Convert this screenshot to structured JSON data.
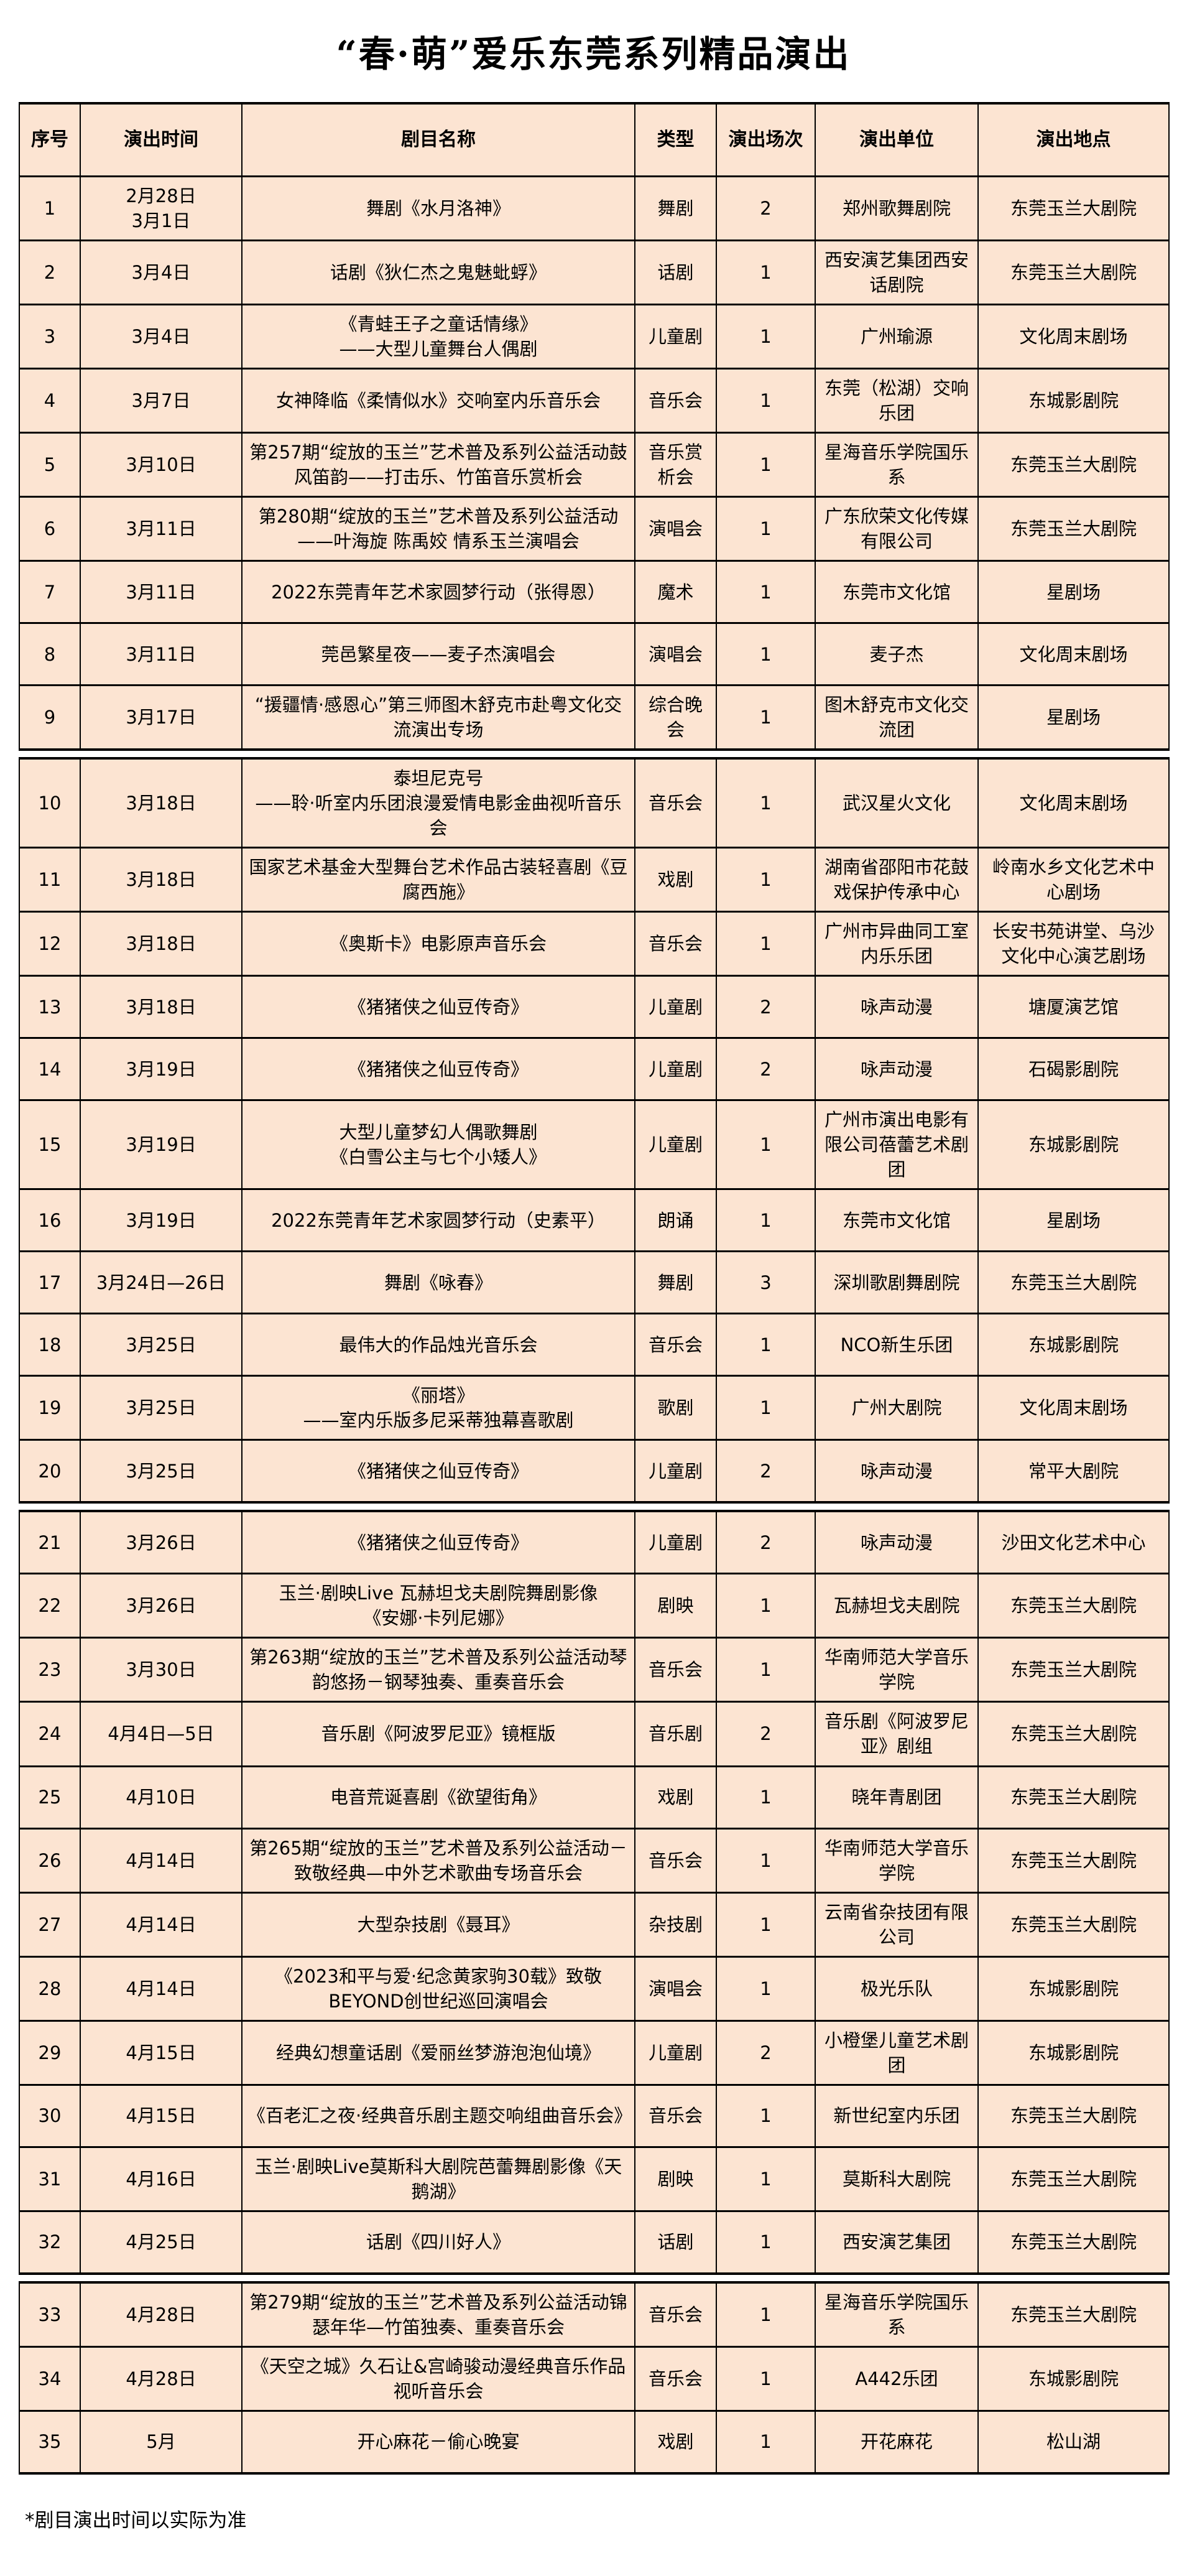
{
  "page_title": "“春·萌”爱乐东莞系列精品演出",
  "footnote": "*剧目演出时间以实际为准",
  "colors": {
    "page_bg": "#ffffff",
    "cell_bg": "#fce4d2",
    "border": "#000000",
    "text": "#000000"
  },
  "table": {
    "columns": [
      "序号",
      "演出时间",
      "剧目名称",
      "类型",
      "演出场次",
      "演出单位",
      "演出地点"
    ],
    "section_row_counts": [
      9,
      11,
      12,
      3
    ],
    "rows": [
      {
        "no": "1",
        "date": "2月28日\n3月1日",
        "title": "舞剧《水月洛神》",
        "type": "舞剧",
        "shows": "2",
        "org": "郑州歌舞剧院",
        "venue": "东莞玉兰大剧院"
      },
      {
        "no": "2",
        "date": "3月4日",
        "title": "话剧《狄仁杰之鬼魅蚍蜉》",
        "type": "话剧",
        "shows": "1",
        "org": "西安演艺集团西安话剧院",
        "venue": "东莞玉兰大剧院"
      },
      {
        "no": "3",
        "date": "3月4日",
        "title": "《青蛙王子之童话情缘》\n——大型儿童舞台人偶剧",
        "type": "儿童剧",
        "shows": "1",
        "org": "广州瑜源",
        "venue": "文化周末剧场"
      },
      {
        "no": "4",
        "date": "3月7日",
        "title": "女神降临《柔情似水》交响室内乐音乐会",
        "type": "音乐会",
        "shows": "1",
        "org": "东莞（松湖）交响乐团",
        "venue": "东城影剧院"
      },
      {
        "no": "5",
        "date": "3月10日",
        "title": "第257期“绽放的玉兰”艺术普及系列公益活动鼓风笛韵——打击乐、竹笛音乐赏析会",
        "type": "音乐赏析会",
        "shows": "1",
        "org": "星海音乐学院国乐系",
        "venue": "东莞玉兰大剧院"
      },
      {
        "no": "6",
        "date": "3月11日",
        "title": "第280期“绽放的玉兰”艺术普及系列公益活动——叶海旋 陈禹姣 情系玉兰演唱会",
        "type": "演唱会",
        "shows": "1",
        "org": "广东欣荣文化传媒有限公司",
        "venue": "东莞玉兰大剧院"
      },
      {
        "no": "7",
        "date": "3月11日",
        "title": "2022东莞青年艺术家圆梦行动（张得恩）",
        "type": "魔术",
        "shows": "1",
        "org": "东莞市文化馆",
        "venue": "星剧场"
      },
      {
        "no": "8",
        "date": "3月11日",
        "title": "莞邑繁星夜——麦子杰演唱会",
        "type": "演唱会",
        "shows": "1",
        "org": "麦子杰",
        "venue": "文化周末剧场"
      },
      {
        "no": "9",
        "date": "3月17日",
        "title": "“援疆情·感恩心”第三师图木舒克市赴粤文化交流演出专场",
        "type": "综合晚会",
        "shows": "1",
        "org": "图木舒克市文化交流团",
        "venue": "星剧场"
      },
      {
        "no": "10",
        "date": "3月18日",
        "title": "泰坦尼克号\n——聆·听室内乐团浪漫爱情电影金曲视听音乐会",
        "type": "音乐会",
        "shows": "1",
        "org": "武汉星火文化",
        "venue": "文化周末剧场"
      },
      {
        "no": "11",
        "date": "3月18日",
        "title": "国家艺术基金大型舞台艺术作品古装轻喜剧《豆腐西施》",
        "type": "戏剧",
        "shows": "1",
        "org": "湖南省邵阳市花鼓戏保护传承中心",
        "venue": "岭南水乡文化艺术中心剧场"
      },
      {
        "no": "12",
        "date": "3月18日",
        "title": "《奥斯卡》电影原声音乐会",
        "type": "音乐会",
        "shows": "1",
        "org": "广州市异曲同工室内乐乐团",
        "venue": "长安书苑讲堂、乌沙文化中心演艺剧场"
      },
      {
        "no": "13",
        "date": "3月18日",
        "title": "《猪猪侠之仙豆传奇》",
        "type": "儿童剧",
        "shows": "2",
        "org": "咏声动漫",
        "venue": "塘厦演艺馆"
      },
      {
        "no": "14",
        "date": "3月19日",
        "title": "《猪猪侠之仙豆传奇》",
        "type": "儿童剧",
        "shows": "2",
        "org": "咏声动漫",
        "venue": "石碣影剧院"
      },
      {
        "no": "15",
        "date": "3月19日",
        "title": "大型儿童梦幻人偶歌舞剧\n《白雪公主与七个小矮人》",
        "type": "儿童剧",
        "shows": "1",
        "org": "广州市演出电影有限公司蓓蕾艺术剧团",
        "venue": "东城影剧院"
      },
      {
        "no": "16",
        "date": "3月19日",
        "title": "2022东莞青年艺术家圆梦行动（史素平）",
        "type": "朗诵",
        "shows": "1",
        "org": "东莞市文化馆",
        "venue": "星剧场"
      },
      {
        "no": "17",
        "date": "3月24日—26日",
        "title": "舞剧《咏春》",
        "type": "舞剧",
        "shows": "3",
        "org": "深圳歌剧舞剧院",
        "venue": "东莞玉兰大剧院"
      },
      {
        "no": "18",
        "date": "3月25日",
        "title": "最伟大的作品烛光音乐会",
        "type": "音乐会",
        "shows": "1",
        "org": "NCO新生乐团",
        "venue": "东城影剧院"
      },
      {
        "no": "19",
        "date": "3月25日",
        "title": "《丽塔》\n——室内乐版多尼采蒂独幕喜歌剧",
        "type": "歌剧",
        "shows": "1",
        "org": "广州大剧院",
        "venue": "文化周末剧场"
      },
      {
        "no": "20",
        "date": "3月25日",
        "title": "《猪猪侠之仙豆传奇》",
        "type": "儿童剧",
        "shows": "2",
        "org": "咏声动漫",
        "venue": "常平大剧院"
      },
      {
        "no": "21",
        "date": "3月26日",
        "title": "《猪猪侠之仙豆传奇》",
        "type": "儿童剧",
        "shows": "2",
        "org": "咏声动漫",
        "venue": "沙田文化艺术中心"
      },
      {
        "no": "22",
        "date": "3月26日",
        "title": "玉兰·剧映Live 瓦赫坦戈夫剧院舞剧影像\n《安娜·卡列尼娜》",
        "type": "剧映",
        "shows": "1",
        "org": "瓦赫坦戈夫剧院",
        "venue": "东莞玉兰大剧院"
      },
      {
        "no": "23",
        "date": "3月30日",
        "title": "第263期“绽放的玉兰”艺术普及系列公益活动琴韵悠扬－钢琴独奏、重奏音乐会",
        "type": "音乐会",
        "shows": "1",
        "org": "华南师范大学音乐学院",
        "venue": "东莞玉兰大剧院"
      },
      {
        "no": "24",
        "date": "4月4日—5日",
        "title": "音乐剧《阿波罗尼亚》镜框版",
        "type": "音乐剧",
        "shows": "2",
        "org": "音乐剧《阿波罗尼亚》剧组",
        "venue": "东莞玉兰大剧院"
      },
      {
        "no": "25",
        "date": "4月10日",
        "title": "电音荒诞喜剧《欲望街角》",
        "type": "戏剧",
        "shows": "1",
        "org": "晓年青剧团",
        "venue": "东莞玉兰大剧院"
      },
      {
        "no": "26",
        "date": "4月14日",
        "title": "第265期“绽放的玉兰”艺术普及系列公益活动－致敬经典—中外艺术歌曲专场音乐会",
        "type": "音乐会",
        "shows": "1",
        "org": "华南师范大学音乐学院",
        "venue": "东莞玉兰大剧院"
      },
      {
        "no": "27",
        "date": "4月14日",
        "title": "大型杂技剧《聂耳》",
        "type": "杂技剧",
        "shows": "1",
        "org": "云南省杂技团有限公司",
        "venue": "东莞玉兰大剧院"
      },
      {
        "no": "28",
        "date": "4月14日",
        "title": "《2023和平与爱·纪念黄家驹30载》致敬BEYOND创世纪巡回演唱会",
        "type": "演唱会",
        "shows": "1",
        "org": "极光乐队",
        "venue": "东城影剧院"
      },
      {
        "no": "29",
        "date": "4月15日",
        "title": "经典幻想童话剧《爱丽丝梦游泡泡仙境》",
        "type": "儿童剧",
        "shows": "2",
        "org": "小橙堡儿童艺术剧团",
        "venue": "东城影剧院"
      },
      {
        "no": "30",
        "date": "4月15日",
        "title": "《百老汇之夜·经典音乐剧主题交响组曲音乐会》",
        "type": "音乐会",
        "shows": "1",
        "org": "新世纪室内乐团",
        "venue": "东莞玉兰大剧院"
      },
      {
        "no": "31",
        "date": "4月16日",
        "title": "玉兰·剧映Live莫斯科大剧院芭蕾舞剧影像《天鹅湖》",
        "type": "剧映",
        "shows": "1",
        "org": "莫斯科大剧院",
        "venue": "东莞玉兰大剧院"
      },
      {
        "no": "32",
        "date": "4月25日",
        "title": "话剧《四川好人》",
        "type": "话剧",
        "shows": "1",
        "org": "西安演艺集团",
        "venue": "东莞玉兰大剧院"
      },
      {
        "no": "33",
        "date": "4月28日",
        "title": "第279期“绽放的玉兰”艺术普及系列公益活动锦瑟年华—竹笛独奏、重奏音乐会",
        "type": "音乐会",
        "shows": "1",
        "org": "星海音乐学院国乐系",
        "venue": "东莞玉兰大剧院"
      },
      {
        "no": "34",
        "date": "4月28日",
        "title": "《天空之城》久石让&宫崎骏动漫经典音乐作品视听音乐会",
        "type": "音乐会",
        "shows": "1",
        "org": "A442乐团",
        "venue": "东城影剧院"
      },
      {
        "no": "35",
        "date": "5月",
        "title": "开心麻花－偷心晚宴",
        "type": "戏剧",
        "shows": "1",
        "org": "开花麻花",
        "venue": "松山湖"
      }
    ]
  }
}
